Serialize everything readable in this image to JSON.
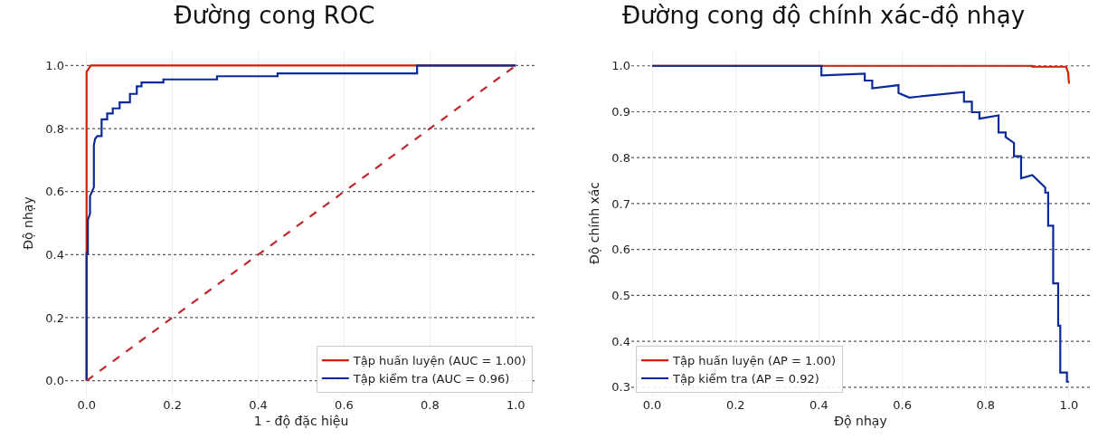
{
  "chart_data": [
    {
      "type": "line",
      "title": "Đường cong ROC",
      "xlabel": "1 - độ đặc hiệu",
      "ylabel": "Độ nhạy",
      "xlim": [
        -0.05,
        1.05
      ],
      "ylim": [
        -0.05,
        1.05
      ],
      "xticks": [
        {
          "value": 0,
          "label": "0.0"
        },
        {
          "value": 0.2,
          "label": "0.2"
        },
        {
          "value": 0.4,
          "label": "0.4"
        },
        {
          "value": 0.6,
          "label": "0.6"
        },
        {
          "value": 0.8,
          "label": "0.8"
        },
        {
          "value": 1,
          "label": "1.0"
        }
      ],
      "yticks": [
        {
          "value": 0,
          "label": "0.0"
        },
        {
          "value": 0.2,
          "label": "0.2"
        },
        {
          "value": 0.4,
          "label": "0.4"
        },
        {
          "value": 0.6,
          "label": "0.6"
        },
        {
          "value": 0.8,
          "label": "0.8"
        },
        {
          "value": 1,
          "label": "1.0"
        }
      ],
      "grid": true,
      "legend": "bottom right",
      "marker": "none",
      "line_style": "solid",
      "series": [
        {
          "name": "Tập huấn luyện (AUC = 1.00)",
          "color": "#cc2200",
          "x": [
            0,
            0,
            0.01,
            1
          ],
          "values": [
            0,
            0.98,
            1,
            1
          ]
        },
        {
          "name": "Tập kiểm tra (AUC = 0.96)",
          "color": "#0a2a9a",
          "x": [
            0,
            0,
            0.003,
            0.003,
            0.008,
            0.008,
            0.017,
            0.017,
            0.02,
            0.025,
            0.035,
            0.035,
            0.048,
            0.048,
            0.061,
            0.061,
            0.077,
            0.077,
            0.101,
            0.101,
            0.117,
            0.117,
            0.128,
            0.128,
            0.179,
            0.179,
            0.304,
            0.304,
            0.445,
            0.445,
            0.77,
            0.77,
            1
          ],
          "values": [
            0,
            0.404,
            0.404,
            0.51,
            0.53,
            0.585,
            0.614,
            0.748,
            0.768,
            0.776,
            0.776,
            0.829,
            0.829,
            0.848,
            0.848,
            0.864,
            0.864,
            0.883,
            0.883,
            0.91,
            0.91,
            0.934,
            0.934,
            0.946,
            0.946,
            0.956,
            0.956,
            0.966,
            0.966,
            0.975,
            0.975,
            1,
            1
          ]
        },
        {
          "color": "#c0282d",
          "line_style": "dashed",
          "x": [
            0,
            1
          ],
          "values": [
            0,
            1
          ]
        }
      ]
    },
    {
      "type": "line",
      "title": "Đường cong độ chính xác-độ nhạy",
      "xlabel": "Độ nhạy",
      "ylabel": "Độ chính xác",
      "xlim": [
        -0.05,
        1.05
      ],
      "ylim": [
        0.28,
        1.035
      ],
      "xticks": [
        {
          "value": 0,
          "label": "0.0"
        },
        {
          "value": 0.2,
          "label": "0.2"
        },
        {
          "value": 0.4,
          "label": "0.4"
        },
        {
          "value": 0.6,
          "label": "0.6"
        },
        {
          "value": 0.8,
          "label": "0.8"
        },
        {
          "value": 1,
          "label": "1.0"
        }
      ],
      "yticks": [
        0.3,
        0.4,
        0.5,
        0.6,
        0.7,
        0.8,
        0.9,
        {
          "value": 1,
          "label": "1.0"
        }
      ],
      "grid": true,
      "legend": "bottom left",
      "marker": "none",
      "line_style": "solid",
      "series": [
        {
          "name": "Tập huấn luyện (AP = 1.00)",
          "color": "#cc2200",
          "x": [
            0,
            0.912,
            0.912,
            0.993,
            0.998,
            1
          ],
          "values": [
            1,
            1,
            0.998,
            0.998,
            0.985,
            0.961
          ]
        },
        {
          "name": "Tập kiểm tra (AP = 0.92)",
          "color": "#0a2a9a",
          "x": [
            0,
            0.406,
            0.406,
            0.51,
            0.51,
            0.528,
            0.528,
            0.591,
            0.591,
            0.617,
            0.748,
            0.748,
            0.767,
            0.767,
            0.785,
            0.785,
            0.831,
            0.831,
            0.848,
            0.848,
            0.868,
            0.868,
            0.885,
            0.885,
            0.912,
            0.912,
            0.943,
            0.943,
            0.95,
            0.95,
            0.962,
            0.962,
            0.974,
            0.974,
            0.979,
            0.979,
            0.995,
            0.995,
            1
          ],
          "values": [
            1,
            1,
            0.979,
            0.983,
            0.968,
            0.968,
            0.951,
            0.958,
            0.941,
            0.931,
            0.943,
            0.922,
            0.922,
            0.899,
            0.899,
            0.885,
            0.892,
            0.855,
            0.855,
            0.845,
            0.832,
            0.803,
            0.803,
            0.755,
            0.762,
            0.762,
            0.735,
            0.724,
            0.724,
            0.652,
            0.652,
            0.526,
            0.526,
            0.434,
            0.434,
            0.332,
            0.332,
            0.312,
            0.312
          ]
        }
      ]
    }
  ]
}
